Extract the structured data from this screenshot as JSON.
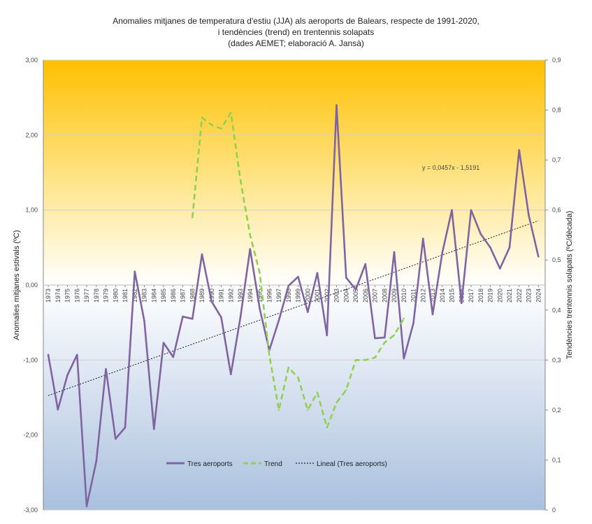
{
  "title": {
    "line1": "Anomalies mitjanes de temperatura d'estiu (JJA) als aeroports de Balears, respecte de 1991-2020,",
    "line2": "i tendències (trend) en trentennis solapats",
    "line3": "(dades AEMET; elaboració A. Jansà)"
  },
  "chart_data": {
    "type": "line",
    "title": "Anomalies mitjanes de temperatura d'estiu (JJA) als aeroports de Balears, respecte de 1991-2020, i tendències (trend) en trentennis solapats (dades AEMET; elaboració A. Jansà)",
    "ylabel": "Anomalies mitjanes estivals (ºC)",
    "y2label": "Tendències trentennis solapats (ºC/dècada)",
    "ylim": [
      -3,
      3
    ],
    "y2lim": [
      0,
      0.9
    ],
    "yticks": [
      "3,00",
      "2,00",
      "1,00",
      "0,00",
      "-1,00",
      "-2,00",
      "-3,00"
    ],
    "y2ticks": [
      "0,9",
      "0,8",
      "0,7",
      "0,6",
      "0,5",
      "0,4",
      "0,3",
      "0,2",
      "0,1",
      "0"
    ],
    "x": [
      1973,
      1974,
      1975,
      1976,
      1977,
      1978,
      1979,
      1980,
      1981,
      1982,
      1983,
      1984,
      1985,
      1986,
      1987,
      1988,
      1989,
      1990,
      1991,
      1992,
      1993,
      1994,
      1995,
      1996,
      1997,
      1998,
      1999,
      2000,
      2001,
      2002,
      2003,
      2004,
      2005,
      2006,
      2007,
      2008,
      2009,
      2010,
      2011,
      2012,
      2013,
      2014,
      2015,
      2016,
      2017,
      2018,
      2019,
      2020,
      2021,
      2022,
      2023,
      2024
    ],
    "series": [
      {
        "name": "Tres aeroports",
        "axis": "left",
        "color": "#8064a2",
        "values": [
          -0.93,
          -1.66,
          -1.2,
          -0.93,
          -2.95,
          -2.35,
          -1.12,
          -2.05,
          -1.9,
          0.18,
          -0.48,
          -1.92,
          -0.77,
          -0.96,
          -0.42,
          -0.45,
          0.41,
          -0.22,
          -0.43,
          -1.19,
          -0.43,
          0.48,
          -0.31,
          -0.87,
          -0.47,
          -0.01,
          0.11,
          -0.36,
          0.16,
          -0.67,
          2.4,
          0.1,
          -0.06,
          0.28,
          -0.71,
          -0.7,
          0.44,
          -0.98,
          -0.51,
          0.62,
          -0.39,
          0.43,
          1.0,
          -0.24,
          1.0,
          0.68,
          0.5,
          0.22,
          0.5,
          1.8,
          0.93,
          0.38
        ]
      },
      {
        "name": "Trend",
        "axis": "right",
        "color": "#92d050",
        "values": [
          null,
          null,
          null,
          null,
          null,
          null,
          null,
          null,
          null,
          null,
          null,
          null,
          null,
          null,
          null,
          0.585,
          0.785,
          0.77,
          0.763,
          0.795,
          0.66,
          0.55,
          0.475,
          0.31,
          0.2,
          0.285,
          0.265,
          0.2,
          0.235,
          0.165,
          0.215,
          0.24,
          0.3,
          0.3,
          0.305,
          0.335,
          0.35,
          0.383,
          null,
          null,
          null,
          null,
          null,
          null,
          null,
          null,
          null,
          null,
          null,
          null,
          null,
          null
        ]
      }
    ],
    "trendline": {
      "name": "Lineal  (Tres aeroports)",
      "equation": "y = 0,0457x - 1,5191",
      "slope": 0.0457,
      "intercept": -1.5191
    },
    "legend_position": "bottom-center",
    "grid": true
  },
  "colors": {
    "background_top": "#ffc000",
    "background_bottom": "#a9c0de",
    "series1": "#8064a2",
    "trend": "#92d050",
    "trendline": "#000000"
  }
}
